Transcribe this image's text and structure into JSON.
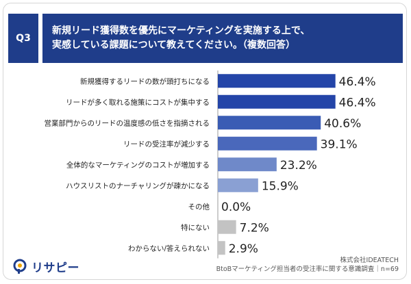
{
  "header": {
    "question_tag": "Q3",
    "title_line1": "新規リード獲得数を優先にマーケティングを実施する上で、",
    "title_line2": "実感している課題について教えてください。（複数回答）"
  },
  "chart_data": {
    "type": "bar",
    "orientation": "horizontal",
    "categories": [
      "新規獲得するリードの数が頭打ちになる",
      "リードが多く取れる施策にコストが集中する",
      "営業部門からのリードの温度感の低さを指摘される",
      "リードの受注率が減少する",
      "全体的なマーケティングのコストが増加する",
      "ハウスリストのナーチャリングが疎かになる",
      "その他",
      "特にない",
      "わからない/答えられない"
    ],
    "values": [
      46.4,
      46.4,
      40.6,
      39.1,
      23.2,
      15.9,
      0.0,
      7.2,
      2.9
    ],
    "value_labels": [
      "46.4%",
      "46.4%",
      "40.6%",
      "39.1%",
      "23.2%",
      "15.9%",
      "0.0%",
      "7.2%",
      "2.9%"
    ],
    "bar_colors": [
      "#2445a8",
      "#2445a8",
      "#3a5cb4",
      "#4a68bb",
      "#6f89c9",
      "#8aa0d3",
      "#8aa0d3",
      "#c3c3c3",
      "#c3c3c3"
    ],
    "xlim": [
      0,
      100
    ],
    "grid": false,
    "legend": "none"
  },
  "footer": {
    "logo_text": "リサピー",
    "source_line1": "株式会社IDEATECH",
    "source_line2": "BtoBマーケティング担当者の受注率に関する意識調査｜n=69"
  },
  "colors": {
    "header_bg": "#1f3d8a",
    "axis_line": "#999999",
    "logo": "#1f3d8a",
    "logo_accent": "#f0a500"
  }
}
